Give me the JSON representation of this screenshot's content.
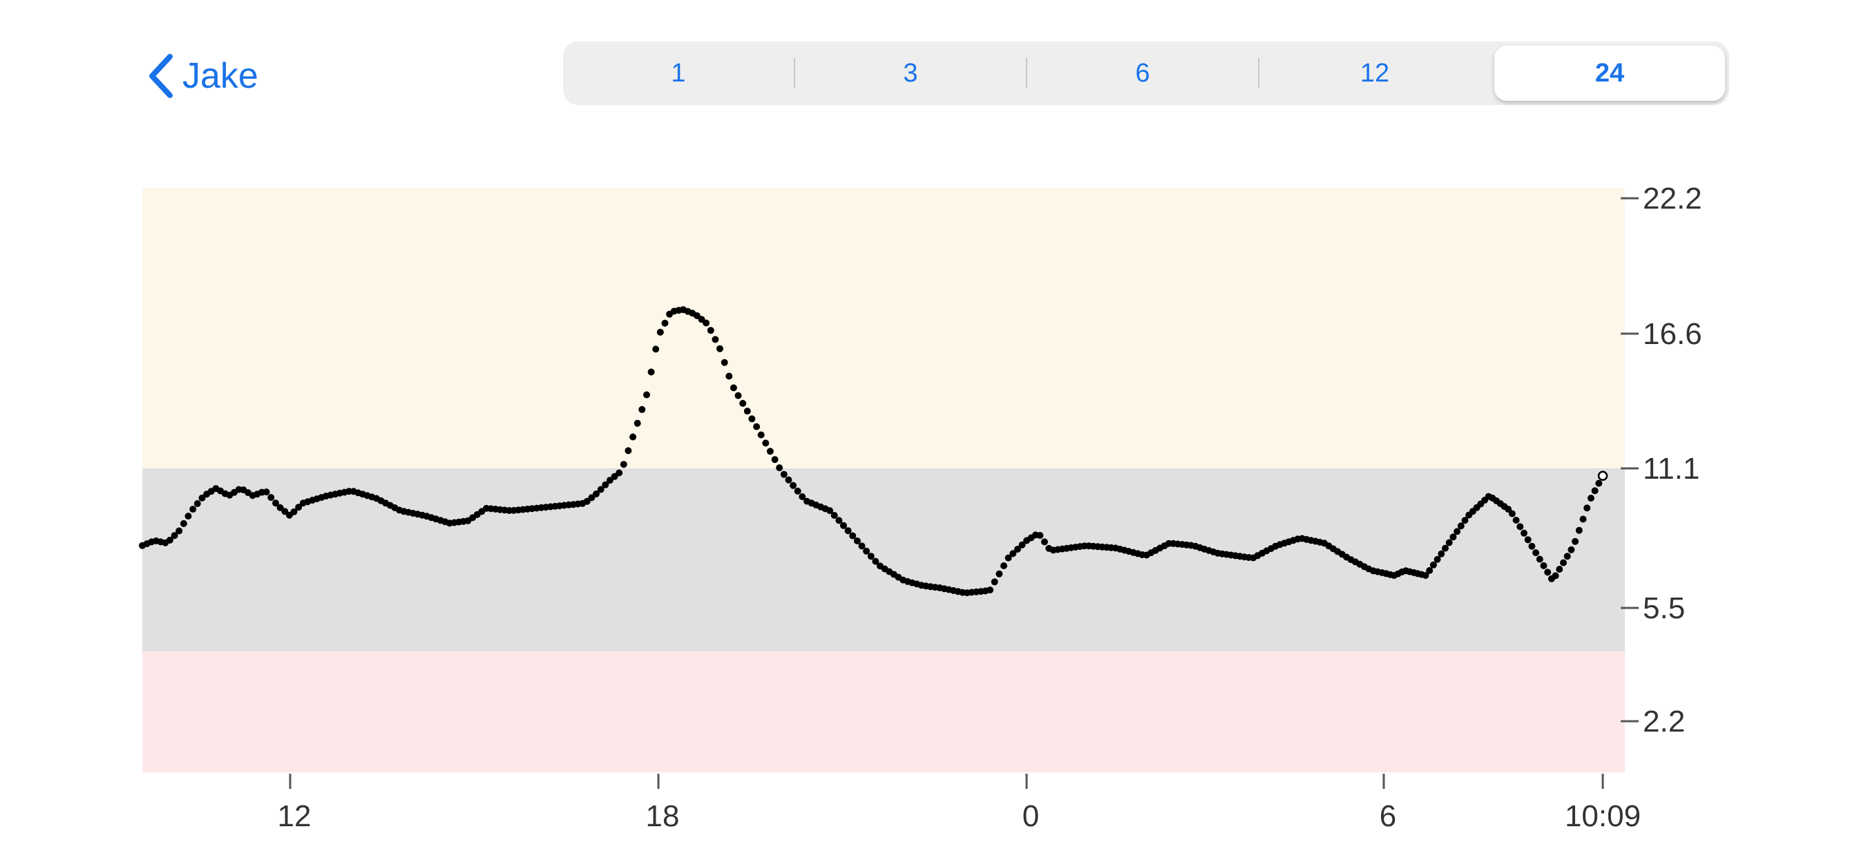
{
  "header": {
    "back_label": "Jake",
    "back_icon": "chevron-left-icon"
  },
  "range_selector": {
    "options": [
      "1",
      "3",
      "6",
      "12",
      "24"
    ],
    "selected": "24"
  },
  "colors": {
    "accent": "#1a73e8",
    "high_band": "#fdf7ea",
    "target_band": "#e0e0e0",
    "low_band": "#fde8e9",
    "points": "#000000"
  },
  "chart_data": {
    "type": "scatter",
    "y_ticks": [
      "22.2",
      "16.6",
      "11.1",
      "5.5",
      "2.2"
    ],
    "x_ticks": [
      {
        "label": "12",
        "hour": 12
      },
      {
        "label": "18",
        "hour": 18
      },
      {
        "label": "0",
        "hour": 24
      },
      {
        "label": "6",
        "hour": 30
      },
      {
        "label": "10:09",
        "hour": 34.15
      }
    ],
    "x_range_hours": [
      9.6,
      34.4
    ],
    "target_range": [
      4.4,
      11.1
    ],
    "keypoints": [
      [
        9.6,
        8.0
      ],
      [
        9.8,
        8.2
      ],
      [
        10.0,
        8.1
      ],
      [
        10.2,
        8.6
      ],
      [
        10.4,
        9.4
      ],
      [
        10.6,
        10.0
      ],
      [
        10.8,
        10.3
      ],
      [
        11.0,
        10.0
      ],
      [
        11.2,
        10.3
      ],
      [
        11.4,
        10.0
      ],
      [
        11.6,
        10.2
      ],
      [
        11.8,
        9.6
      ],
      [
        12.0,
        9.2
      ],
      [
        12.2,
        9.7
      ],
      [
        12.6,
        10.0
      ],
      [
        13.0,
        10.2
      ],
      [
        13.4,
        9.9
      ],
      [
        13.8,
        9.4
      ],
      [
        14.2,
        9.2
      ],
      [
        14.6,
        8.9
      ],
      [
        14.9,
        9.0
      ],
      [
        15.2,
        9.5
      ],
      [
        15.6,
        9.4
      ],
      [
        16.0,
        9.5
      ],
      [
        16.4,
        9.6
      ],
      [
        16.8,
        9.7
      ],
      [
        17.0,
        10.1
      ],
      [
        17.2,
        10.6
      ],
      [
        17.4,
        11.0
      ],
      [
        17.6,
        12.5
      ],
      [
        17.8,
        14.0
      ],
      [
        18.0,
        16.5
      ],
      [
        18.2,
        17.5
      ],
      [
        18.4,
        17.6
      ],
      [
        18.6,
        17.4
      ],
      [
        18.8,
        17.0
      ],
      [
        19.0,
        16.0
      ],
      [
        19.2,
        14.5
      ],
      [
        19.6,
        12.8
      ],
      [
        20.0,
        11.0
      ],
      [
        20.4,
        9.8
      ],
      [
        20.8,
        9.4
      ],
      [
        21.2,
        8.3
      ],
      [
        21.6,
        7.2
      ],
      [
        22.0,
        6.6
      ],
      [
        22.3,
        6.4
      ],
      [
        22.6,
        6.3
      ],
      [
        23.0,
        6.1
      ],
      [
        23.4,
        6.2
      ],
      [
        23.7,
        7.5
      ],
      [
        24.0,
        8.2
      ],
      [
        24.2,
        8.5
      ],
      [
        24.4,
        7.8
      ],
      [
        25.0,
        8.0
      ],
      [
        25.5,
        7.9
      ],
      [
        26.0,
        7.6
      ],
      [
        26.4,
        8.1
      ],
      [
        26.8,
        8.0
      ],
      [
        27.2,
        7.7
      ],
      [
        27.8,
        7.5
      ],
      [
        28.2,
        8.0
      ],
      [
        28.6,
        8.3
      ],
      [
        29.0,
        8.1
      ],
      [
        29.4,
        7.5
      ],
      [
        29.8,
        7.0
      ],
      [
        30.2,
        6.8
      ],
      [
        30.4,
        7.0
      ],
      [
        30.8,
        6.8
      ],
      [
        31.2,
        8.0
      ],
      [
        31.6,
        9.2
      ],
      [
        32.0,
        10.0
      ],
      [
        32.4,
        9.4
      ],
      [
        32.8,
        8.0
      ],
      [
        33.2,
        6.6
      ],
      [
        33.6,
        8.0
      ],
      [
        33.9,
        9.8
      ],
      [
        34.15,
        10.8
      ]
    ],
    "point_count": 330
  }
}
